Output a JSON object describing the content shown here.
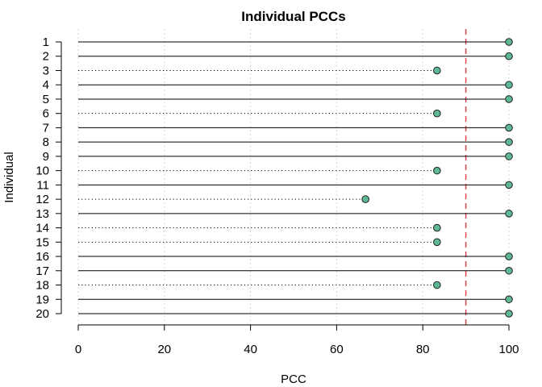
{
  "chart_data": {
    "type": "dot",
    "title": "Individual PCCs",
    "xlabel": "PCC",
    "ylabel": "Individual",
    "xlim": [
      0,
      100
    ],
    "xticks": [
      0,
      20,
      40,
      60,
      80,
      100
    ],
    "grid": true,
    "threshold": 90,
    "categories": [
      "1",
      "2",
      "3",
      "4",
      "5",
      "6",
      "7",
      "8",
      "9",
      "10",
      "11",
      "12",
      "13",
      "14",
      "15",
      "16",
      "17",
      "18",
      "19",
      "20"
    ],
    "values": [
      100,
      100,
      83.3,
      100,
      100,
      83.3,
      100,
      100,
      100,
      83.3,
      100,
      66.7,
      100,
      83.3,
      83.3,
      100,
      100,
      83.3,
      100,
      100
    ],
    "colors": {
      "point_fill": "#5fb894",
      "point_stroke": "#1f1f1f",
      "threshold": "#e0454f",
      "line": "#000000",
      "grid": "#d9d9d9"
    }
  }
}
